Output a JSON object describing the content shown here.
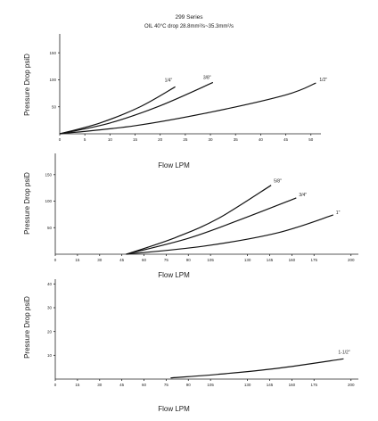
{
  "title": "299 Series",
  "subtitle": "OIL 40°C drop 28.8mm²/s~35.3mm²/s",
  "chart_data": [
    {
      "type": "line",
      "xlabel": "Flow LPM",
      "ylabel": "Pressure Drop psiD",
      "xlim": [
        0,
        52
      ],
      "ylim": [
        0,
        185
      ],
      "x_ticks": [
        "0",
        "5",
        "10",
        "15",
        "20",
        "25",
        "30",
        "35",
        "40",
        "45",
        "50"
      ],
      "y_ticks": [
        "50",
        "100",
        "150"
      ],
      "series": [
        {
          "name": "1/4\"",
          "points": [
            [
              0,
              0
            ],
            [
              8,
              20
            ],
            [
              16,
              50
            ],
            [
              23,
              87
            ]
          ]
        },
        {
          "name": "3/8\"",
          "points": [
            [
              0,
              0
            ],
            [
              10,
              20
            ],
            [
              20,
              52
            ],
            [
              30.5,
              95
            ]
          ]
        },
        {
          "name": "1/2\"",
          "points": [
            [
              0,
              0
            ],
            [
              15,
              15
            ],
            [
              30,
              40
            ],
            [
              45,
              72
            ],
            [
              51,
              94
            ]
          ]
        }
      ]
    },
    {
      "type": "line",
      "xlabel": "Flow LPM",
      "ylabel": "Pressure Drop psiD",
      "xlim": [
        0,
        205
      ],
      "ylim": [
        0,
        190
      ],
      "x_ticks": [
        "0",
        "15",
        "30",
        "45",
        "60",
        "75",
        "90",
        "105",
        "130",
        "145",
        "160",
        "175",
        "200"
      ],
      "y_ticks": [
        "50",
        "100",
        "150"
      ],
      "series": [
        {
          "name": "5/8\"",
          "points": [
            [
              48,
              0
            ],
            [
              80,
              30
            ],
            [
              110,
              67
            ],
            [
              146,
              130
            ]
          ]
        },
        {
          "name": "3/4\"",
          "points": [
            [
              48,
              0
            ],
            [
              90,
              30
            ],
            [
              125,
              65
            ],
            [
              163,
              106
            ]
          ]
        },
        {
          "name": "1\"",
          "points": [
            [
              48,
              0
            ],
            [
              100,
              15
            ],
            [
              150,
              40
            ],
            [
              188,
              74
            ]
          ]
        }
      ]
    },
    {
      "type": "line",
      "xlabel": "Flow LPM",
      "ylabel": "Pressure Drop psiD",
      "xlim": [
        0,
        205
      ],
      "ylim": [
        0,
        42
      ],
      "x_ticks": [
        "0",
        "15",
        "30",
        "45",
        "60",
        "75",
        "90",
        "105",
        "130",
        "145",
        "160",
        "175",
        "200"
      ],
      "y_ticks": [
        "10",
        "20",
        "30",
        "40"
      ],
      "series": [
        {
          "name": "1-1/2\"",
          "points": [
            [
              78,
              0.5
            ],
            [
              110,
              2
            ],
            [
              150,
              4.5
            ],
            [
              195,
              8.5
            ]
          ]
        }
      ]
    }
  ]
}
